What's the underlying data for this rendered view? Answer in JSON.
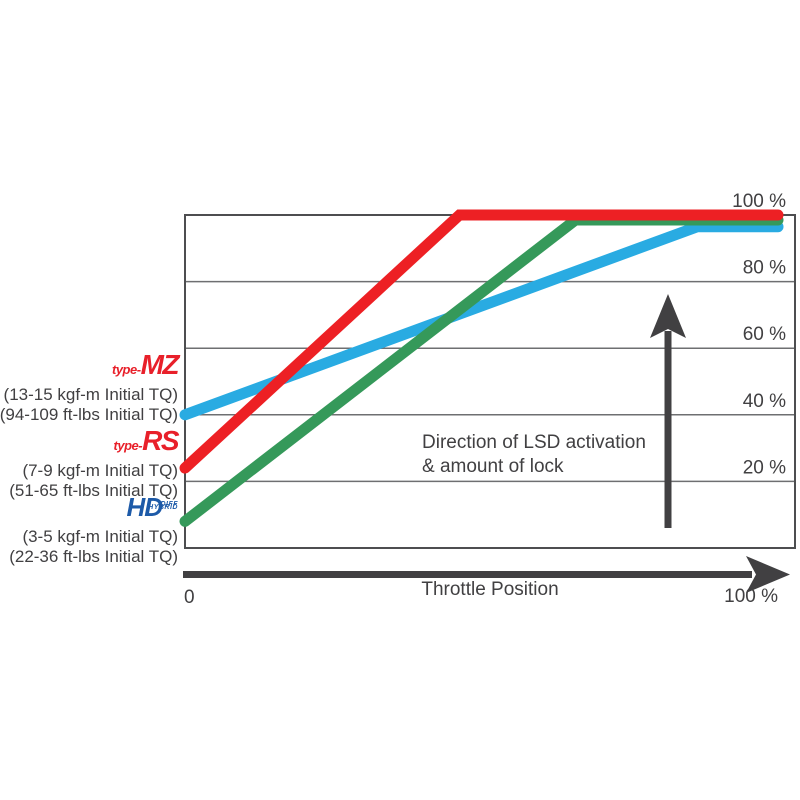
{
  "chart_data": {
    "type": "line",
    "xlabel": "Throttle Position",
    "xlim": [
      0,
      100
    ],
    "ylim": [
      0,
      100
    ],
    "grid": true,
    "x_axis": {
      "origin_label": "0",
      "end_label": "100 %",
      "title": "Throttle Position"
    },
    "y_ticks": [
      {
        "value": 100,
        "label": "100 %"
      },
      {
        "value": 80,
        "label": "80 %"
      },
      {
        "value": 60,
        "label": "60 %"
      },
      {
        "value": 40,
        "label": "40 %"
      },
      {
        "value": 20,
        "label": "20 %"
      }
    ],
    "series": [
      {
        "id": "type-mz",
        "name": "type-MZ",
        "color": "#29abe2",
        "points": [
          [
            0,
            40
          ],
          [
            84,
            96.5
          ],
          [
            100,
            96.5
          ]
        ]
      },
      {
        "id": "hd",
        "name": "HD Hybrid Diff",
        "color": "#35995a",
        "points": [
          [
            0,
            8
          ],
          [
            64,
            98.5
          ],
          [
            100,
            98.5
          ]
        ]
      },
      {
        "id": "type-rs",
        "name": "type-RS",
        "color": "#ed2024",
        "points": [
          [
            0,
            24
          ],
          [
            45,
            100
          ],
          [
            100,
            100
          ]
        ]
      }
    ],
    "annotation": {
      "line1": "Direction of LSD activation",
      "line2": "& amount of lock"
    },
    "colors": {
      "grid": "#6e6f71",
      "box": "#4d4e50",
      "text": "#414042",
      "arrow": "#414042",
      "logo_red": "#e8202a",
      "hd_logo_blue": "#1d5aa8"
    }
  },
  "legend": [
    {
      "id": "type-mz",
      "logo_prefix": "type-",
      "logo_main": "MZ",
      "spec_kgf": "(13-15 kgf-m Initial TQ)",
      "spec_ftlbs": "(94-109 ft-lbs Initial TQ)"
    },
    {
      "id": "type-rs",
      "logo_prefix": "type-",
      "logo_main": "RS",
      "spec_kgf": "(7-9 kgf-m Initial TQ)",
      "spec_ftlbs": "(51-65 ft-lbs Initial TQ)"
    },
    {
      "id": "hd",
      "logo_main": "HD",
      "logo_sub_top": "HYBRID",
      "logo_sub_bottom": "DIFF",
      "spec_kgf": "(3-5 kgf-m Initial TQ)",
      "spec_ftlbs": "(22-36 ft-lbs Initial TQ)"
    }
  ]
}
